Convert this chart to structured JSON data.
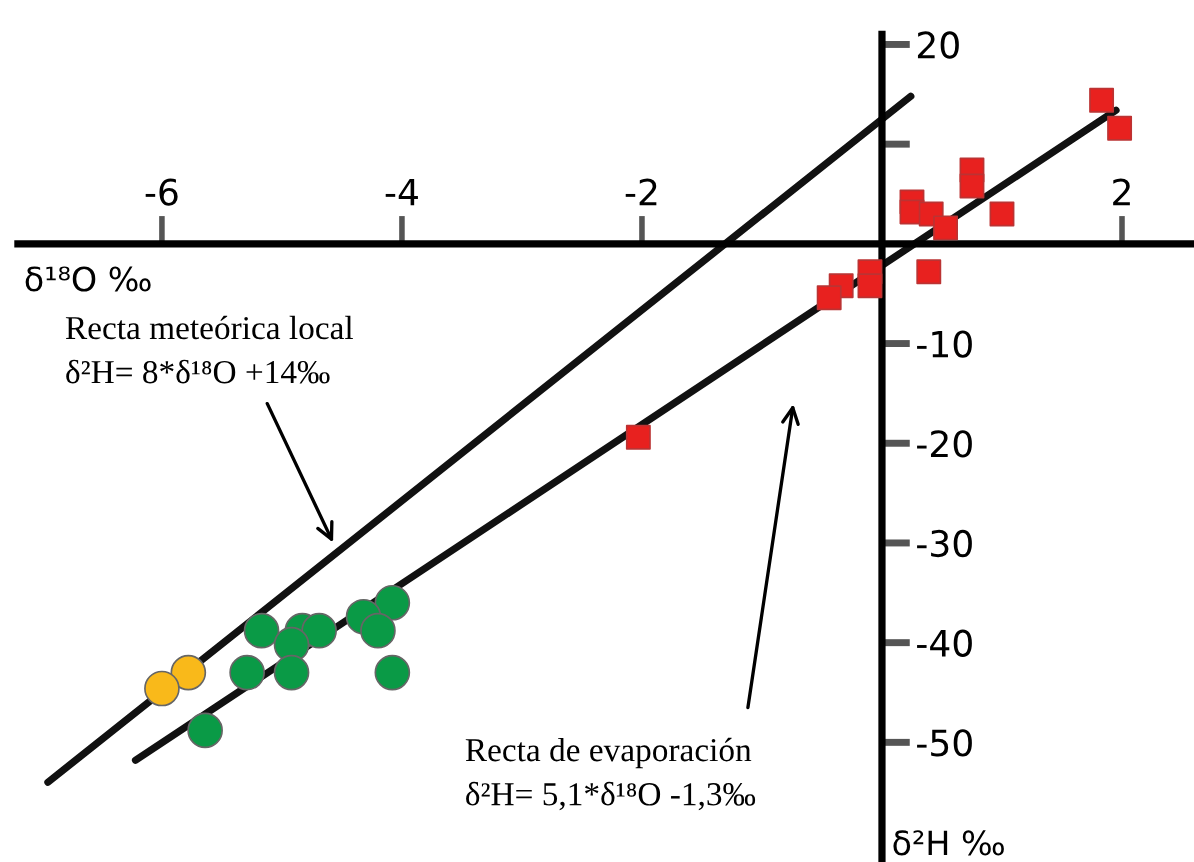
{
  "chart_data": {
    "type": "scatter",
    "xlabel": "δ¹⁸O ‰",
    "ylabel": "δ²H ‰",
    "xlim": [
      -7.2,
      2.6
    ],
    "ylim": [
      -62,
      21
    ],
    "xticks": [
      -6,
      -4,
      -2,
      2
    ],
    "yticks": [
      -50,
      -40,
      -30,
      -20,
      -10,
      {
        "value": 10,
        "label": null
      },
      20
    ],
    "grid": false,
    "legend": false,
    "series": [
      {
        "type": "line",
        "color": "#111111",
        "marker": "none",
        "x": [
          -6.95,
          0.24
        ],
        "values": [
          -54,
          14.8
        ]
      },
      {
        "type": "line",
        "color": "#111111",
        "marker": "none",
        "x": [
          -6.22,
          1.95
        ],
        "values": [
          -51.8,
          13.4
        ]
      },
      {
        "color": "#e8211f",
        "marker": "square",
        "x": [
          1.83,
          1.98,
          0.75,
          0.75,
          0.25,
          0.25,
          0.41,
          1.0,
          0.53,
          0.39,
          -0.1,
          -0.1,
          -0.34,
          -0.44,
          -2.03
        ],
        "values": [
          14.4,
          11.6,
          7.4,
          5.8,
          4.2,
          3.2,
          3.0,
          3.0,
          1.6,
          -2.8,
          -2.8,
          -4.2,
          -4.2,
          -5.4,
          -19.4
        ]
      },
      {
        "color": "#0a9a46",
        "marker": "circle",
        "x": [
          -4.08,
          -4.32,
          -4.2,
          -4.08,
          -5.17,
          -4.83,
          -4.69,
          -4.92,
          -5.29,
          -4.92,
          -5.64
        ],
        "values": [
          -36,
          -37.4,
          -38.8,
          -43,
          -38.8,
          -38.8,
          -38.8,
          -40.2,
          -43,
          -43,
          -48.8
        ]
      },
      {
        "color": "#f9b91a",
        "marker": "circle",
        "x": [
          -5.78,
          -6.0
        ],
        "values": [
          -43,
          -44.6
        ]
      }
    ],
    "annotations": [
      "Recta meteórica local\nδ²H= 8*δ¹⁸O +14‰",
      "Recta de evaporación\nδ²H= 5,1*δ¹⁸O -1,3‰"
    ]
  }
}
